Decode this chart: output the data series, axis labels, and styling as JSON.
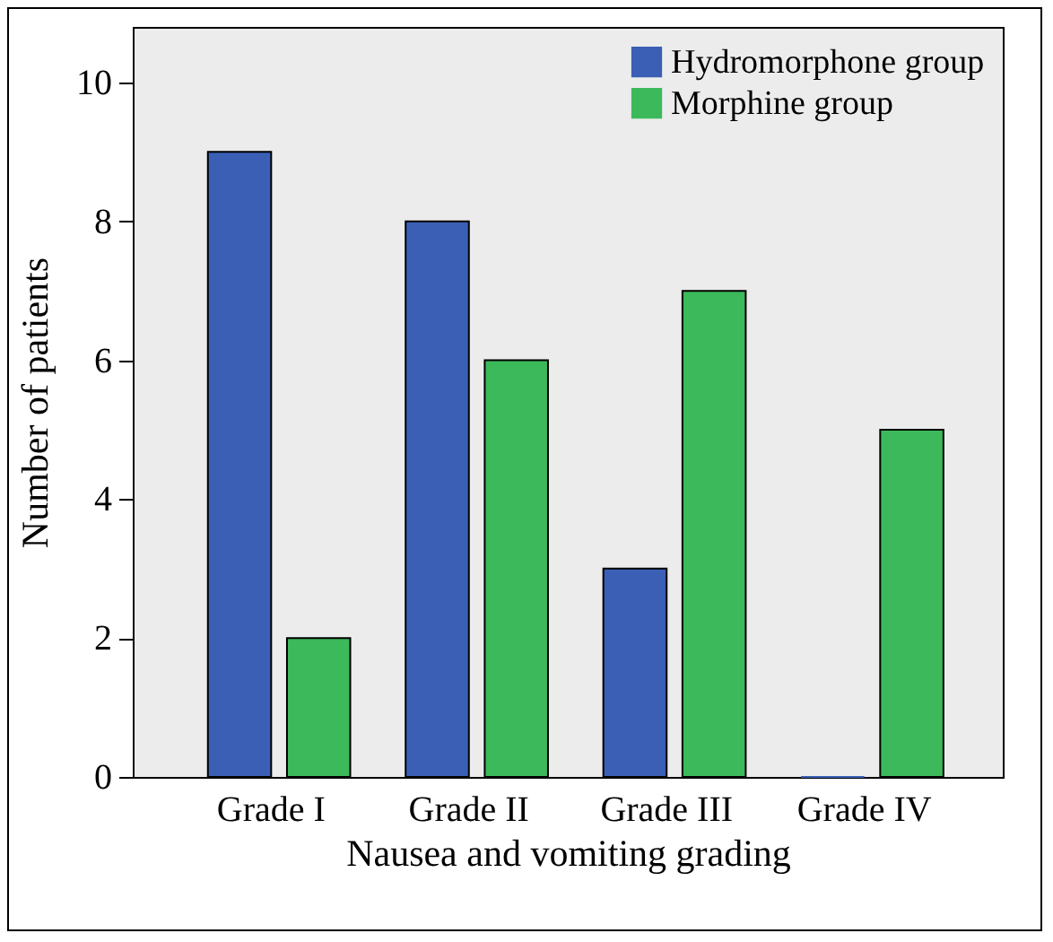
{
  "chart_data": {
    "type": "bar",
    "xlabel": "Nausea and vomiting grading",
    "ylabel": "Number of patients",
    "categories": [
      "Grade I",
      "Grade II",
      "Grade III",
      "Grade IV"
    ],
    "series": [
      {
        "name": "Hydromorphone group",
        "color": "#3a5fb5",
        "values": [
          9,
          8,
          3,
          0
        ]
      },
      {
        "name": "Morphine group",
        "color": "#3cb95a",
        "values": [
          2,
          6,
          7,
          5
        ]
      }
    ],
    "ylim": [
      0,
      10.8
    ],
    "yticks": [
      0,
      2,
      4,
      6,
      8,
      10
    ],
    "grid": false,
    "legend": "top right"
  }
}
